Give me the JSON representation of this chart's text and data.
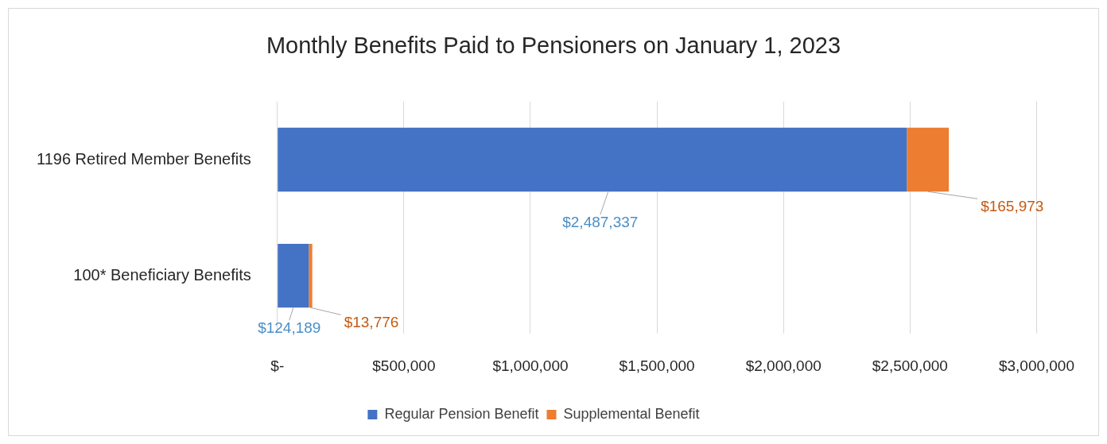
{
  "chart_data": {
    "type": "bar",
    "orientation": "horizontal",
    "stacked": true,
    "title": "Monthly Benefits Paid to Pensioners on January 1, 2023",
    "categories": [
      "1196 Retired Member Benefits",
      "100* Beneficiary Benefits"
    ],
    "series": [
      {
        "name": "Regular Pension Benefit",
        "color": "#4472c4",
        "values": [
          2487337,
          124189
        ],
        "value_labels": [
          "$2,487,337",
          "$124,189"
        ]
      },
      {
        "name": "Supplemental Benefit",
        "color": "#ed7d31",
        "values": [
          165973,
          13776
        ],
        "value_labels": [
          "$165,973",
          "$13,776"
        ]
      }
    ],
    "xlim": [
      0,
      3000000
    ],
    "xticks": [
      {
        "value": 0,
        "label": "$-"
      },
      {
        "value": 500000,
        "label": "$500,000"
      },
      {
        "value": 1000000,
        "label": "$1,000,000"
      },
      {
        "value": 1500000,
        "label": "$1,500,000"
      },
      {
        "value": 2000000,
        "label": "$2,000,000"
      },
      {
        "value": 2500000,
        "label": "$2,500,000"
      },
      {
        "value": 3000000,
        "label": "$3,000,000"
      }
    ],
    "grid": "x",
    "legend": "bottom"
  }
}
